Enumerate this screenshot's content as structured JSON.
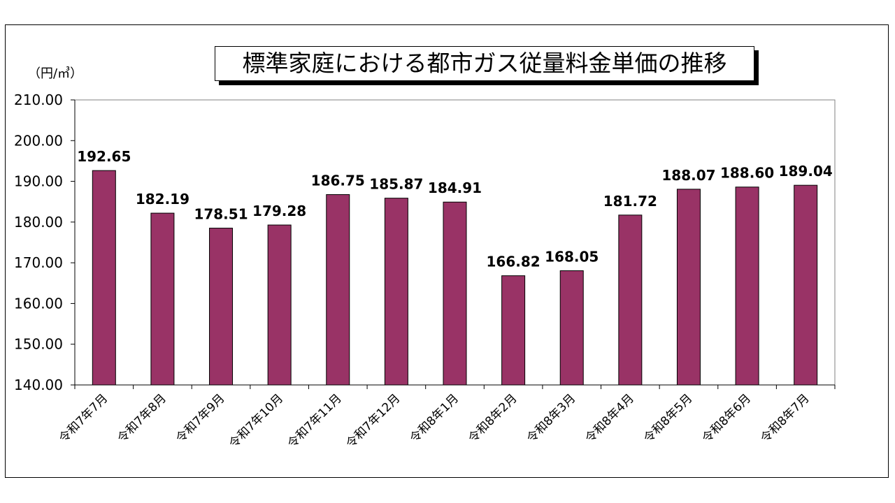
{
  "chart_data": {
    "type": "bar",
    "title": "標準家庭における都市ガス従量料金単価の推移",
    "unit_label": "（円/㎥）",
    "xlabel": "",
    "ylabel": "",
    "categories": [
      "令和7年7月",
      "令和7年8月",
      "令和7年9月",
      "令和7年10月",
      "令和7年11月",
      "令和7年12月",
      "令和8年1月",
      "令和8年2月",
      "令和8年3月",
      "令和8年4月",
      "令和8年5月",
      "令和8年6月",
      "令和8年7月"
    ],
    "values": [
      192.65,
      182.19,
      178.51,
      179.28,
      186.75,
      185.87,
      184.91,
      166.82,
      168.05,
      181.72,
      188.07,
      188.6,
      189.04
    ],
    "value_labels": [
      "192.65",
      "182.19",
      "178.51",
      "179.28",
      "186.75",
      "185.87",
      "184.91",
      "166.82",
      "168.05",
      "181.72",
      "188.07",
      "188.60",
      "189.04"
    ],
    "ylim": [
      140,
      210
    ],
    "yticks": [
      "140.00",
      "150.00",
      "160.00",
      "170.00",
      "180.00",
      "190.00",
      "200.00",
      "210.00"
    ],
    "grid": false,
    "legend": "none",
    "bar_color": "#993366"
  }
}
